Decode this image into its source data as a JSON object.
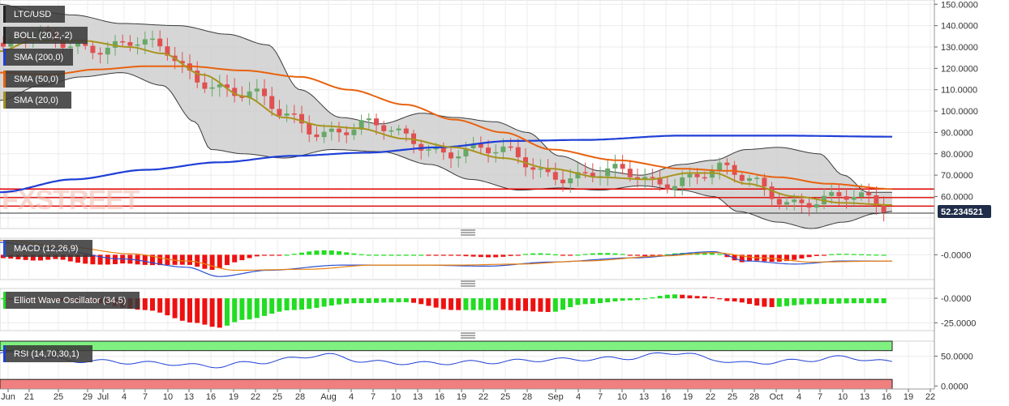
{
  "chart_data": {
    "type": "candlestick",
    "symbol": "LTC/USD",
    "last_price": "52.234521",
    "x_ticks": [
      {
        "label": "Jun",
        "x": 10
      },
      {
        "label": "21",
        "x": 36
      },
      {
        "label": "25",
        "x": 72
      },
      {
        "label": "29",
        "x": 108
      },
      {
        "label": "Jul",
        "x": 127
      },
      {
        "label": "4",
        "x": 153
      },
      {
        "label": "7",
        "x": 179
      },
      {
        "label": "10",
        "x": 207
      },
      {
        "label": "13",
        "x": 233
      },
      {
        "label": "16",
        "x": 260
      },
      {
        "label": "19",
        "x": 288
      },
      {
        "label": "22",
        "x": 315
      },
      {
        "label": "25",
        "x": 342
      },
      {
        "label": "28",
        "x": 370
      },
      {
        "label": "Aug",
        "x": 405
      },
      {
        "label": "4",
        "x": 433
      },
      {
        "label": "7",
        "x": 460
      },
      {
        "label": "10",
        "x": 488
      },
      {
        "label": "13",
        "x": 515
      },
      {
        "label": "16",
        "x": 542
      },
      {
        "label": "19",
        "x": 569
      },
      {
        "label": "22",
        "x": 596
      },
      {
        "label": "25",
        "x": 623
      },
      {
        "label": "28",
        "x": 650
      },
      {
        "label": "Sep",
        "x": 685
      },
      {
        "label": "4",
        "x": 713
      },
      {
        "label": "7",
        "x": 740
      },
      {
        "label": "10",
        "x": 767
      },
      {
        "label": "13",
        "x": 794
      },
      {
        "label": "16",
        "x": 821
      },
      {
        "label": "19",
        "x": 848
      },
      {
        "label": "22",
        "x": 876
      },
      {
        "label": "25",
        "x": 903
      },
      {
        "label": "28",
        "x": 930
      },
      {
        "label": "Oct",
        "x": 957
      },
      {
        "label": "4",
        "x": 985
      },
      {
        "label": "7",
        "x": 1011
      },
      {
        "label": "10",
        "x": 1039
      },
      {
        "label": "13",
        "x": 1066
      },
      {
        "label": "16",
        "x": 1093
      },
      {
        "label": "19",
        "x": 1120
      },
      {
        "label": "22",
        "x": 1147
      }
    ],
    "price_axis": {
      "ticks": [
        "150.0000",
        "140.0000",
        "130.0000",
        "120.0000",
        "110.0000",
        "100.0000",
        "90.0000",
        "80.0000",
        "70.0000",
        "60.0000"
      ],
      "range": [
        45,
        152
      ]
    },
    "indicators": {
      "price": [
        "LTC/USD",
        "BOLL (20,2,-2)",
        "SMA (200,0)",
        "SMA (50,0)",
        "SMA (20,0)"
      ],
      "macd": "MACD (12,26,9)",
      "ewo": "Elliott Wave Oscillator (34,5)",
      "rsi": "RSI (14,70,30,1)"
    },
    "colors": {
      "boll": "#b8b8b8",
      "sma200": "#1f3fd6",
      "sma50": "#e8620f",
      "sma20": "#a89420",
      "up": "#68a868",
      "down": "#e05050",
      "hline": "#e00000",
      "macd": "#2c4fd0",
      "signal": "#e8820f",
      "pos": "#22dd22",
      "neg": "#ee1111"
    },
    "levels": [
      63.5,
      59.5,
      55.5,
      52.2
    ],
    "sma200": [
      [
        0,
        62
      ],
      [
        90,
        68
      ],
      [
        180,
        72.5
      ],
      [
        270,
        76
      ],
      [
        360,
        79
      ],
      [
        450,
        80.5
      ],
      [
        540,
        83
      ],
      [
        630,
        86
      ],
      [
        720,
        86.5
      ],
      [
        840,
        88.5
      ],
      [
        960,
        88.5
      ],
      [
        1100,
        88
      ]
    ],
    "sma50": [
      [
        0,
        118
      ],
      [
        60,
        117
      ],
      [
        120,
        119.5
      ],
      [
        180,
        121
      ],
      [
        230,
        121
      ],
      [
        300,
        119
      ],
      [
        370,
        116
      ],
      [
        430,
        110
      ],
      [
        500,
        103
      ],
      [
        560,
        96
      ],
      [
        620,
        90
      ],
      [
        680,
        82
      ],
      [
        760,
        77
      ],
      [
        840,
        73
      ],
      [
        900,
        72
      ],
      [
        960,
        69
      ],
      [
        1020,
        66
      ],
      [
        1100,
        63.5
      ]
    ],
    "sma20": [
      [
        0,
        128
      ],
      [
        40,
        133
      ],
      [
        100,
        133
      ],
      [
        160,
        130
      ],
      [
        200,
        127
      ],
      [
        250,
        117
      ],
      [
        300,
        107
      ],
      [
        350,
        97
      ],
      [
        400,
        93
      ],
      [
        440,
        92
      ],
      [
        500,
        87
      ],
      [
        560,
        83
      ],
      [
        620,
        78
      ],
      [
        680,
        73
      ],
      [
        740,
        69
      ],
      [
        800,
        68
      ],
      [
        850,
        71
      ],
      [
        880,
        71
      ],
      [
        920,
        66
      ],
      [
        980,
        60
      ],
      [
        1040,
        57
      ],
      [
        1100,
        56
      ]
    ],
    "boll_upper": [
      [
        0,
        150
      ],
      [
        40,
        147
      ],
      [
        90,
        145
      ],
      [
        150,
        141
      ],
      [
        220,
        140
      ],
      [
        280,
        136
      ],
      [
        330,
        131
      ],
      [
        370,
        110
      ],
      [
        420,
        97
      ],
      [
        470,
        94
      ],
      [
        520,
        99
      ],
      [
        560,
        97
      ],
      [
        610,
        95
      ],
      [
        650,
        90
      ],
      [
        690,
        79
      ],
      [
        740,
        72
      ],
      [
        790,
        70
      ],
      [
        840,
        75
      ],
      [
        880,
        77
      ],
      [
        920,
        82
      ],
      [
        960,
        83
      ],
      [
        1010,
        80
      ],
      [
        1040,
        70
      ],
      [
        1070,
        62
      ],
      [
        1100,
        62
      ]
    ],
    "boll_lower": [
      [
        0,
        105
      ],
      [
        50,
        112
      ],
      [
        100,
        116
      ],
      [
        150,
        118
      ],
      [
        200,
        112
      ],
      [
        240,
        95
      ],
      [
        260,
        82
      ],
      [
        300,
        80
      ],
      [
        350,
        78
      ],
      [
        410,
        82
      ],
      [
        470,
        81
      ],
      [
        530,
        75
      ],
      [
        580,
        68
      ],
      [
        640,
        63
      ],
      [
        690,
        64
      ],
      [
        740,
        63
      ],
      [
        790,
        65
      ],
      [
        840,
        63
      ],
      [
        880,
        60
      ],
      [
        910,
        53
      ],
      [
        960,
        48
      ],
      [
        1000,
        45
      ],
      [
        1040,
        48
      ],
      [
        1080,
        52
      ],
      [
        1100,
        53
      ]
    ],
    "macd_range": [
      -2.4,
      1.6
    ],
    "macd_ticks": [
      "-0.0000"
    ],
    "ewo_range": [
      -33,
      10
    ],
    "ewo_ticks": [
      "-0.0000",
      "-25.0000"
    ],
    "rsi_range": [
      -5,
      75
    ],
    "rsi_ticks": [
      "50.0000",
      "0.0000"
    ]
  },
  "watermark": "FXSTREET"
}
